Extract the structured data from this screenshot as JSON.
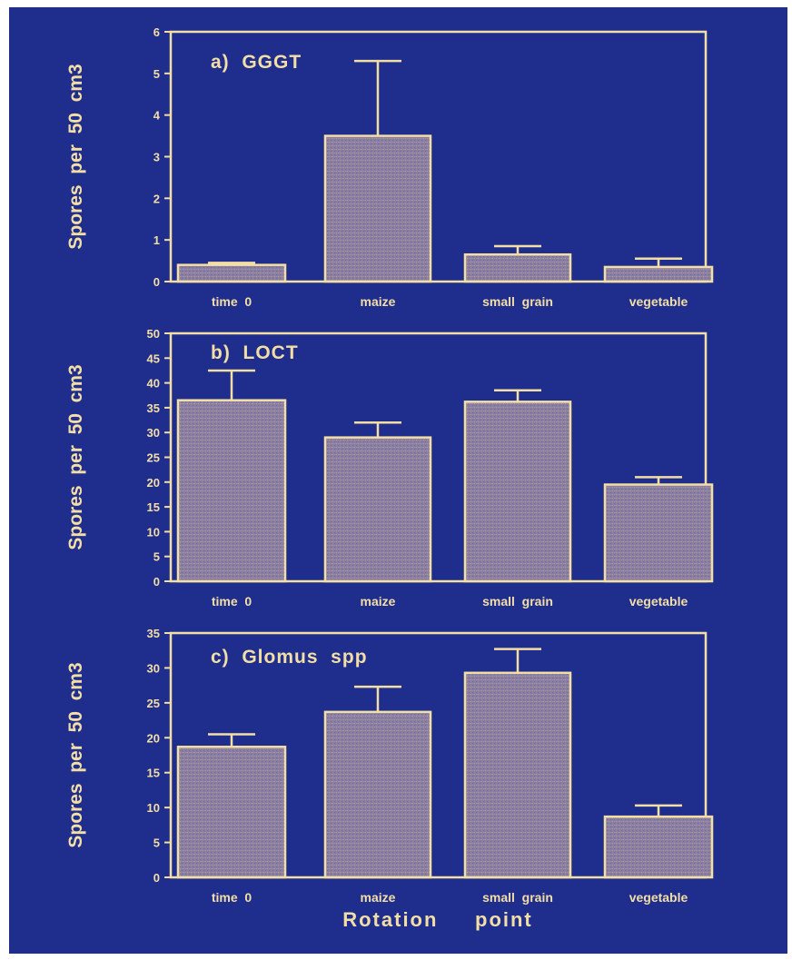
{
  "chart_data": [
    {
      "type": "bar",
      "title": "a)  GGGT",
      "ylabel": "Spores  per  50  cm3",
      "xlabel": "",
      "categories": [
        "time  0",
        "maize",
        "small  grain",
        "vegetable"
      ],
      "values": [
        0.4,
        3.5,
        0.65,
        0.35
      ],
      "error_bars": [
        0.05,
        1.8,
        0.2,
        0.2
      ],
      "ylim": [
        0,
        6
      ],
      "yticks": [
        "0",
        "1",
        "2",
        "3",
        "4",
        "5",
        "6"
      ],
      "grid": false
    },
    {
      "type": "bar",
      "title": "b)  LOCT",
      "ylabel": "Spores  per  50  cm3",
      "xlabel": "",
      "categories": [
        "time  0",
        "maize",
        "small  grain",
        "vegetable"
      ],
      "values": [
        36.5,
        29,
        36.2,
        19.5
      ],
      "error_bars": [
        6,
        3,
        2.3,
        1.5
      ],
      "ylim": [
        0,
        50
      ],
      "yticks": [
        "0",
        "5",
        "10",
        "15",
        "20",
        "25",
        "30",
        "35",
        "40",
        "45",
        "50"
      ],
      "grid": false
    },
    {
      "type": "bar",
      "title": "c)  Glomus  spp",
      "ylabel": "Spores  per  50  cm3",
      "xlabel": "Rotation     point",
      "categories": [
        "time  0",
        "maize",
        "small  grain",
        "vegetable"
      ],
      "values": [
        18.7,
        23.7,
        29.3,
        8.7
      ],
      "error_bars": [
        1.8,
        3.6,
        3.4,
        1.6
      ],
      "ylim": [
        0,
        35
      ],
      "yticks": [
        "0",
        "5",
        "10",
        "15",
        "20",
        "25",
        "30",
        "35"
      ],
      "grid": false
    }
  ],
  "colors": {
    "background": "#1f2d8c",
    "ink": "#f3dfa6",
    "bar_fill": "#8c7fa3"
  }
}
